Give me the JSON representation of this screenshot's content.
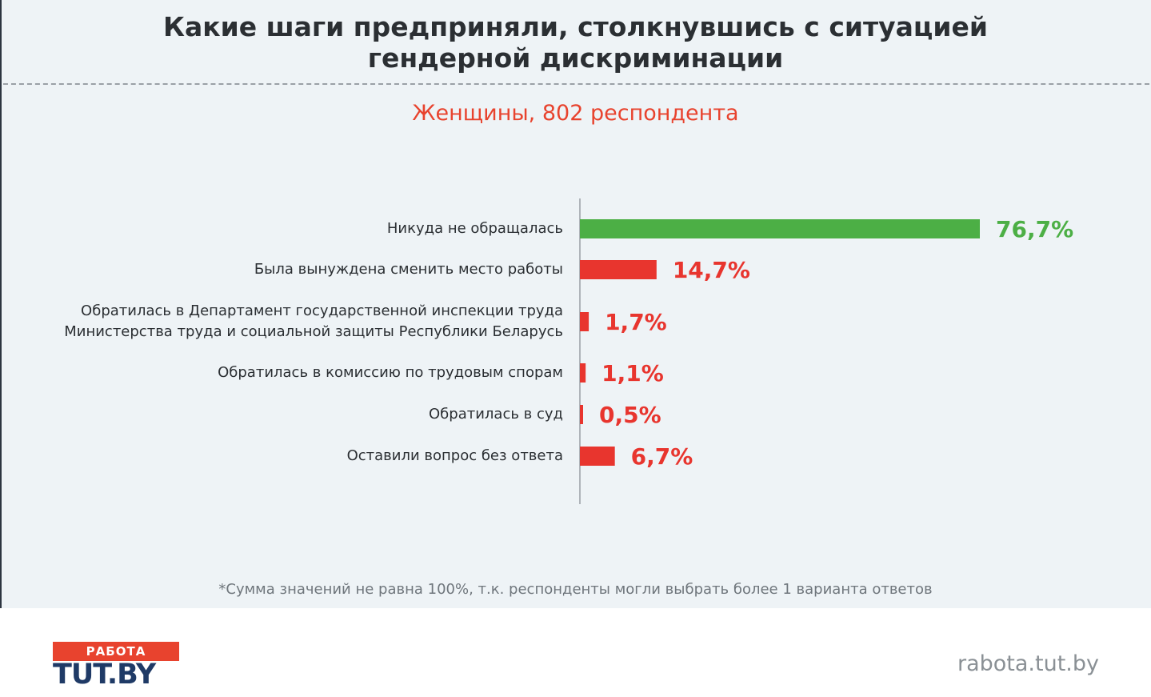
{
  "title": {
    "line1": "Какие шаги предприняли, столкнувшись с ситуацией",
    "line2": "гендерной дискриминации"
  },
  "subtitle": "Женщины, 802 респондента",
  "footnote": "*Сумма значений не равна 100%, т.к. респонденты могли выбрать более 1 варианта ответов",
  "logo": {
    "top": "РАБОТА",
    "main": "TUT.BY"
  },
  "site": "rabota.tut.by",
  "chart_data": {
    "type": "bar",
    "orientation": "horizontal",
    "title": "Какие шаги предприняли, столкнувшись с ситуацией гендерной дискриминации",
    "subtitle": "Женщины, 802 респондента",
    "xlabel": "",
    "ylabel": "",
    "grid": false,
    "unit": "%",
    "categories": [
      [
        "Никуда не обращалась"
      ],
      [
        "Была вынуждена сменить место работы"
      ],
      [
        "Обратилась в Департамент государственной инспекции труда",
        "Министерства труда и социальной защиты Республики Беларусь"
      ],
      [
        "Обратилась в комиссию по трудовым спорам"
      ],
      [
        "Обратилась в суд"
      ],
      [
        "Оставили вопрос без ответа"
      ]
    ],
    "values": [
      76.7,
      14.7,
      1.7,
      1.1,
      0.5,
      6.7
    ],
    "value_labels": [
      "76,7%",
      "14,7%",
      "1,7%",
      "1,1%",
      "0,5%",
      "6,7%"
    ],
    "colors": [
      "#4caf45",
      "#e8352e",
      "#e8352e",
      "#e8352e",
      "#e8352e",
      "#e8352e"
    ]
  }
}
